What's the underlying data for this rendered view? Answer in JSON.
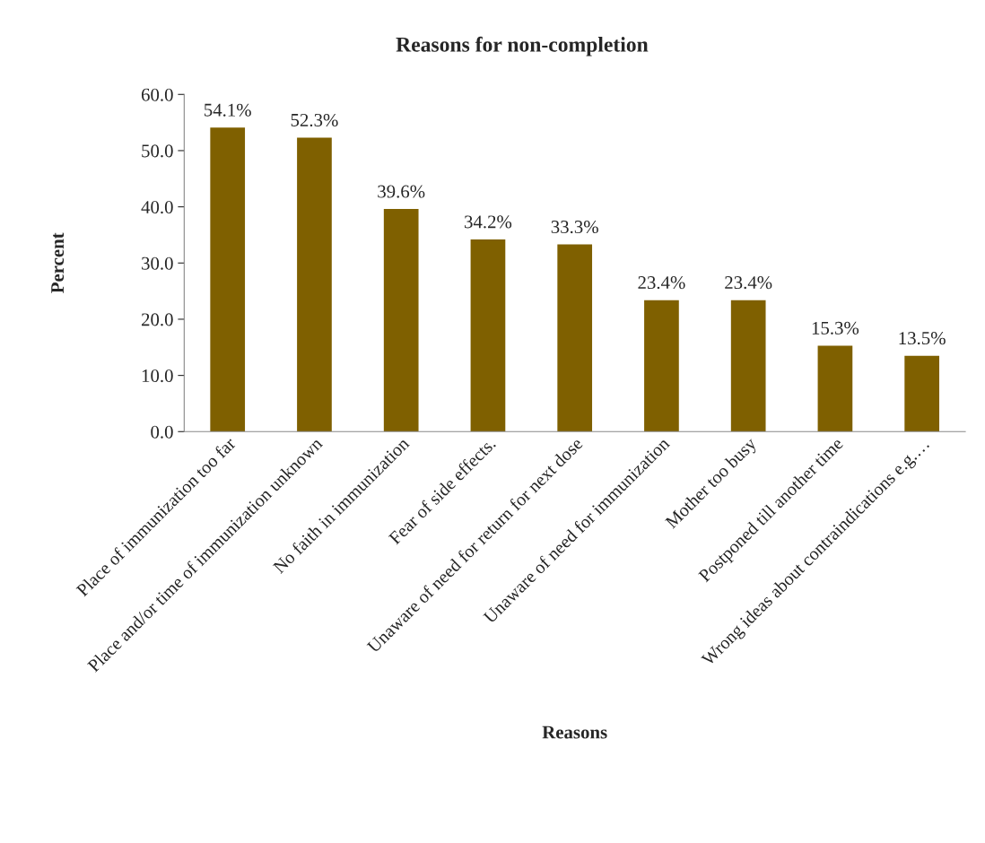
{
  "chart_data": {
    "type": "bar",
    "title": "Reasons for non-completion",
    "xlabel": "Reasons",
    "ylabel": "Percent",
    "categories": [
      "Place of immunization too far",
      "Place and/or time of immunization unknown",
      "No faith in immunization",
      "Fear of side effects.",
      "Unaware of need for return for next dose",
      "Unaware of need for immunization",
      "Mother too busy",
      "Postponed till another time",
      "Wrong ideas about contraindications e.g.…"
    ],
    "values": [
      54.1,
      52.3,
      39.6,
      34.2,
      33.3,
      23.4,
      23.4,
      15.3,
      13.5
    ],
    "value_labels": [
      "54.1%",
      "52.3%",
      "39.6%",
      "34.2%",
      "33.3%",
      "23.4%",
      "23.4%",
      "15.3%",
      "13.5%"
    ],
    "color": "#7f6000",
    "ylim": [
      0,
      60
    ],
    "yticks": [
      {
        "value": 0,
        "label": "0.0"
      },
      {
        "value": 10,
        "label": "10.0"
      },
      {
        "value": 20,
        "label": "20.0"
      },
      {
        "value": 30,
        "label": "30.0"
      },
      {
        "value": 40,
        "label": "40.0"
      },
      {
        "value": 50,
        "label": "50.0"
      },
      {
        "value": 60,
        "label": "60.0"
      }
    ],
    "grid": false
  }
}
